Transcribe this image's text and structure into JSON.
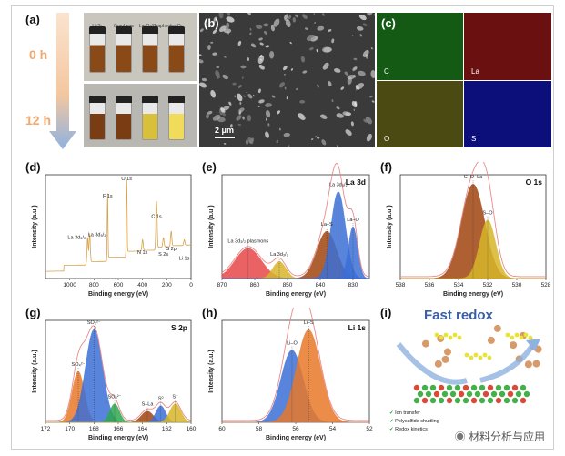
{
  "panels": {
    "a": {
      "label": "(a)",
      "times": [
        "0 h",
        "12 h"
      ],
      "vials": [
        "Li₂S₆",
        "Graphene",
        "La₂O₃/Graphene",
        "La₂O₃"
      ]
    },
    "b": {
      "label": "(b)",
      "scalebar": "2 μm"
    },
    "c": {
      "label": "(c)",
      "elements": [
        "C",
        "La",
        "O",
        "S"
      ]
    },
    "d": {
      "label": "(d)"
    },
    "e": {
      "label": "(e)"
    },
    "f": {
      "label": "(f)"
    },
    "g": {
      "label": "(g)"
    },
    "h": {
      "label": "(h)"
    },
    "i": {
      "label": "(i)",
      "title": "Fast redox",
      "legend": [
        "Ion transfer",
        "Polysulfide shuttling",
        "Redox kinetics"
      ]
    }
  },
  "watermark": "材料分析与应用",
  "colors": {
    "arrow": "#f3a76b",
    "red": "#e8474a",
    "blue": "#3b6fd6",
    "orange": "#e8782a",
    "green": "#2fa84f",
    "yellow": "#d6b62a",
    "brown": "#a0450f",
    "envelope": "#e98a8a"
  },
  "chart_data": [
    {
      "id": "d",
      "type": "line",
      "title": "",
      "xlabel": "Binding energy (eV)",
      "ylabel": "Intensity (a.u.)",
      "xlim": [
        1200,
        0
      ],
      "xticks": [
        1000,
        800,
        600,
        400,
        200,
        0
      ],
      "annotations": [
        "O 1s",
        "F 1s",
        "La 3d₃/₂",
        "La 3d₅/₂",
        "C 1s",
        "N 1s",
        "S 2s",
        "S 2p",
        "Li 1s"
      ],
      "peaks": [
        {
          "name": "O 1s",
          "x": 531,
          "y": 100
        },
        {
          "name": "F 1s",
          "x": 688,
          "y": 72
        },
        {
          "name": "La 3d₃/₂",
          "x": 853,
          "y": 28
        },
        {
          "name": "La 3d₅/₂",
          "x": 836,
          "y": 31
        },
        {
          "name": "C 1s",
          "x": 285,
          "y": 50
        },
        {
          "name": "N 1s",
          "x": 400,
          "y": 12
        },
        {
          "name": "S 2s",
          "x": 228,
          "y": 10
        },
        {
          "name": "S 2p",
          "x": 164,
          "y": 16
        },
        {
          "name": "Li 1s",
          "x": 56,
          "y": 6
        }
      ]
    },
    {
      "id": "e",
      "type": "line",
      "title": "La 3d",
      "xlabel": "Binding energy (eV)",
      "ylabel": "Intensity (a.u.)",
      "xlim": [
        870,
        825
      ],
      "xticks": [
        870,
        860,
        850,
        840,
        830
      ],
      "annotations": [
        "La 3d₃/₂ plasmons",
        "La 3d₃/₂",
        "La–S",
        "La 3d₅/₂",
        "La–O"
      ],
      "series": [
        {
          "name": "La 3d3/2 plasmons",
          "color": "#e8474a",
          "center": 862,
          "height": 32,
          "width": 4
        },
        {
          "name": "La 3d3/2",
          "color": "#d6b62a",
          "center": 852.5,
          "height": 18,
          "width": 2
        },
        {
          "name": "La–S",
          "color": "#a0450f",
          "center": 838,
          "height": 50,
          "width": 3
        },
        {
          "name": "La 3d5/2",
          "color": "#3b6fd6",
          "center": 834.5,
          "height": 92,
          "width": 2.2
        },
        {
          "name": "La–O",
          "color": "#3b6fd6",
          "center": 830,
          "height": 55,
          "width": 1.4
        }
      ]
    },
    {
      "id": "f",
      "type": "line",
      "title": "O 1s",
      "xlabel": "Binding energy (eV)",
      "ylabel": "Intensity (a.u.)",
      "xlim": [
        538,
        528
      ],
      "xticks": [
        538,
        536,
        534,
        532,
        530,
        528
      ],
      "annotations": [
        "C–O–La",
        "S–O"
      ],
      "series": [
        {
          "name": "C–O–La",
          "color": "#a0450f",
          "center": 533,
          "height": 100,
          "width": 0.8
        },
        {
          "name": "S–O",
          "color": "#d6b62a",
          "center": 532,
          "height": 62,
          "width": 0.55
        }
      ]
    },
    {
      "id": "g",
      "type": "line",
      "title": "S 2p",
      "xlabel": "Binding energy (eV)",
      "ylabel": "Intensity (a.u.)",
      "xlim": [
        172,
        160
      ],
      "xticks": [
        172,
        170,
        168,
        166,
        164,
        162,
        160
      ],
      "annotations": [
        "SO₄²⁻",
        "SO₃²⁻",
        "SO₃²⁻",
        "S–La",
        "S⁰",
        "S⁻"
      ],
      "series": [
        {
          "name": "SO4 2-",
          "color": "#e8782a",
          "center": 169.3,
          "height": 55,
          "width": 0.5
        },
        {
          "name": "SO3 2-",
          "color": "#3b6fd6",
          "center": 168,
          "height": 100,
          "width": 0.7
        },
        {
          "name": "SO3 2- b",
          "color": "#2fa84f",
          "center": 166.3,
          "height": 20,
          "width": 0.4
        },
        {
          "name": "S-La",
          "color": "#a0450f",
          "center": 163.6,
          "height": 12,
          "width": 0.5
        },
        {
          "name": "S0",
          "color": "#3b6fd6",
          "center": 162.5,
          "height": 18,
          "width": 0.4
        },
        {
          "name": "S-",
          "color": "#d6b62a",
          "center": 161.3,
          "height": 20,
          "width": 0.45
        }
      ]
    },
    {
      "id": "h",
      "type": "line",
      "title": "Li 1s",
      "xlabel": "Binding energy (eV)",
      "ylabel": "Intensity (a.u.)",
      "xlim": [
        60,
        52
      ],
      "xticks": [
        60,
        58,
        56,
        54,
        52
      ],
      "annotations": [
        "Li–O",
        "Li–S"
      ],
      "series": [
        {
          "name": "Li–O",
          "color": "#3b6fd6",
          "center": 56.2,
          "height": 78,
          "width": 0.6
        },
        {
          "name": "Li–S",
          "color": "#e8782a",
          "center": 55.3,
          "height": 100,
          "width": 0.65
        }
      ]
    }
  ]
}
